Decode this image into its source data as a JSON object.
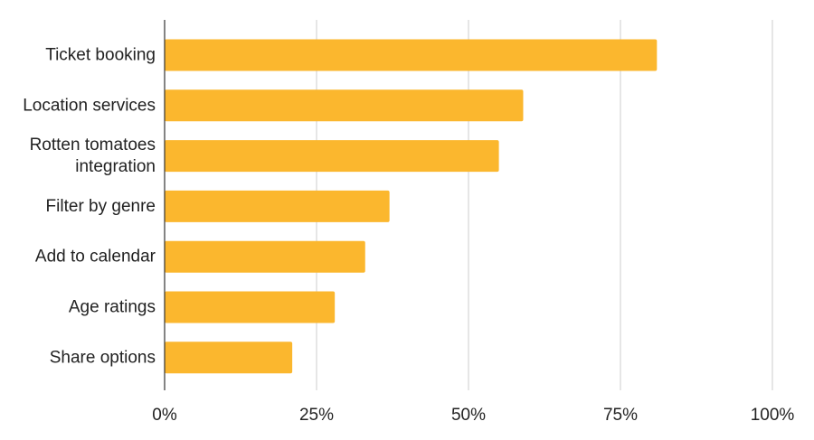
{
  "chart_data": {
    "type": "bar",
    "orientation": "horizontal",
    "categories": [
      [
        "Ticket booking"
      ],
      [
        "Location services"
      ],
      [
        "Rotten tomatoes",
        "integration"
      ],
      [
        "Filter by genre"
      ],
      [
        "Add to calendar"
      ],
      [
        "Age ratings"
      ],
      [
        "Share options"
      ]
    ],
    "values": [
      81,
      59,
      55,
      37,
      33,
      28,
      21
    ],
    "xlim": [
      0,
      100
    ],
    "ticks": [
      0,
      25,
      50,
      75,
      100
    ],
    "tick_labels": [
      "0%",
      "25%",
      "50%",
      "75%",
      "100%"
    ],
    "grid": "vertical",
    "legend": "none",
    "bar_color": "#FBB72E",
    "grid_color": "#cccccc",
    "axis_color": "#333333"
  }
}
